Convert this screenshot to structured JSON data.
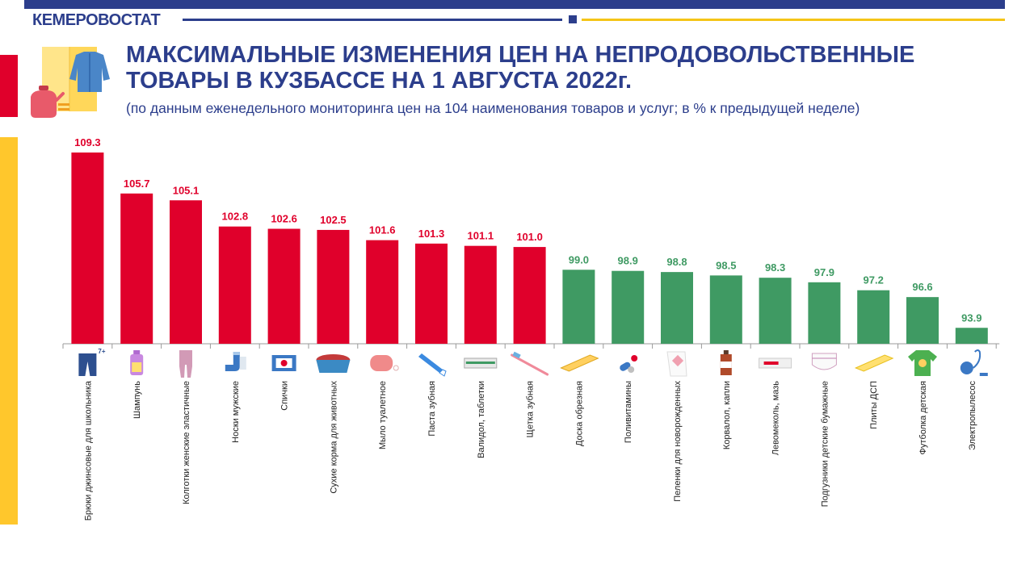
{
  "header": {
    "brand": "КЕМЕРОВОСТАТ",
    "title_line1": "МАКСИМАЛЬНЫЕ ИЗМЕНЕНИЯ ЦЕН НА НЕПРОДОВОЛЬСТВЕННЫЕ",
    "title_line2": "ТОВАРЫ В КУЗБАССЕ НА 1 АВГУСТА 2022г.",
    "subtitle": "(по данным еженедельного мониторинга цен на 104 наименования товаров и услуг; в % к предыдущей неделе)"
  },
  "colors": {
    "brand_blue": "#2c3e8c",
    "increase": "#e0002b",
    "decrease": "#3f9a63",
    "accent_yellow": "#ffc72c"
  },
  "chart_data": {
    "type": "bar",
    "title": "МАКСИМАЛЬНЫЕ ИЗМЕНЕНИЯ ЦЕН НА НЕПРОДОВОЛЬСТВЕННЫЕ ТОВАРЫ В КУЗБАССЕ НА 1 АВГУСТА 2022г.",
    "unit": "% к предыдущей неделе",
    "baseline": 92.5,
    "threshold": 100,
    "grid": false,
    "legend": "none",
    "categories": [
      "Брюки джинсовые для школьника",
      "Шампунь",
      "Колготки женские эластичные",
      "Носки мужские",
      "Спички",
      "Сухие корма для животных",
      "Мыло туалетное",
      "Паста зубная",
      "Валидол, таблетки",
      "Щетка зубная",
      "Доска обрезная",
      "Поливитамины",
      "Пеленки для новорожденных",
      "Корвалол, капли",
      "Левомеколь, мазь",
      "Подгузники детские бумажные",
      "Плиты ДСП",
      "Футболка детская",
      "Электропылесос"
    ],
    "values": [
      109.3,
      105.7,
      105.1,
      102.8,
      102.6,
      102.5,
      101.6,
      101.3,
      101.1,
      101.0,
      99.0,
      98.9,
      98.8,
      98.5,
      98.3,
      97.9,
      97.2,
      96.6,
      93.9
    ],
    "value_labels": [
      "109.3",
      "105.7",
      "105.1",
      "102.8",
      "102.6",
      "102.5",
      "101.6",
      "101.3",
      "101.1",
      "101.0",
      "99.0",
      "98.9",
      "98.8",
      "98.5",
      "98.3",
      "97.9",
      "97.2",
      "96.6",
      "93.9"
    ],
    "icons": [
      "jeans-icon",
      "shampoo-bottle-icon",
      "tights-icon",
      "socks-icon",
      "matchbox-icon",
      "pet-food-bowl-icon",
      "soap-icon",
      "toothpaste-icon",
      "pill-blister-icon",
      "toothbrush-icon",
      "wooden-board-icon",
      "vitamin-pills-icon",
      "baby-diaper-cloth-icon",
      "medicine-bottle-icon",
      "ointment-tube-icon",
      "diaper-icon",
      "chipboard-icon",
      "kids-tshirt-icon",
      "vacuum-cleaner-icon"
    ],
    "age_badge": "7+"
  }
}
